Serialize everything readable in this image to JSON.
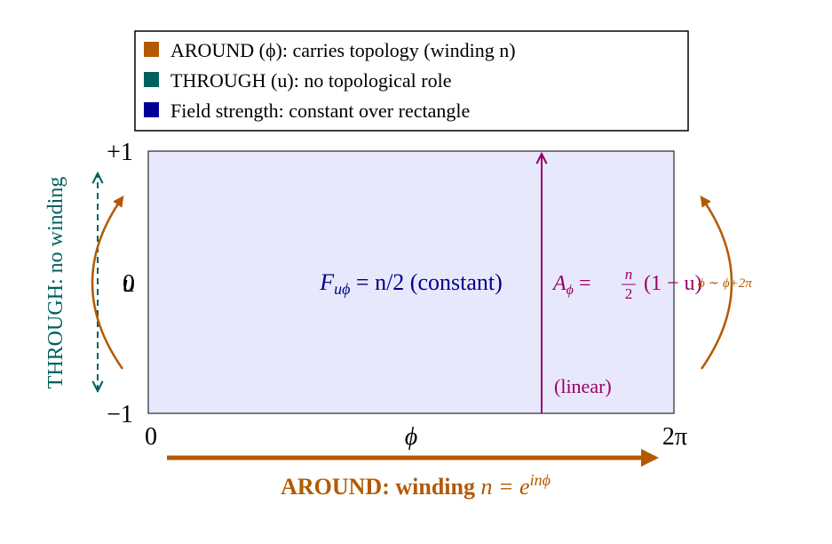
{
  "legend": {
    "items": [
      {
        "label": "AROUND (ϕ): carries topology (winding n)",
        "color": "#b35900"
      },
      {
        "label": "THROUGH (u): no topological role",
        "color": "#006060"
      },
      {
        "label": "Field strength: constant over rectangle",
        "color": "#000099"
      }
    ]
  },
  "axes": {
    "u_top": "+1",
    "u_mid": "0",
    "u_label": "u",
    "u_bottom": "−1",
    "phi_left": "0",
    "phi_label": "ϕ",
    "phi_right": "2π"
  },
  "through_label": "THROUGH: no winding",
  "field": {
    "main": "F",
    "sub": "uϕ",
    "rest": " = n/2 (constant)"
  },
  "potential": {
    "main": "A",
    "sub": "ϕ",
    "eq": " = ",
    "num": "n",
    "den": "2",
    "rest": "(1 − u)"
  },
  "linear": "(linear)",
  "periodicity": "ϕ ∼ ϕ+2π",
  "around": {
    "bold": "AROUND: winding ",
    "math": "n = e",
    "sup": "inϕ"
  }
}
